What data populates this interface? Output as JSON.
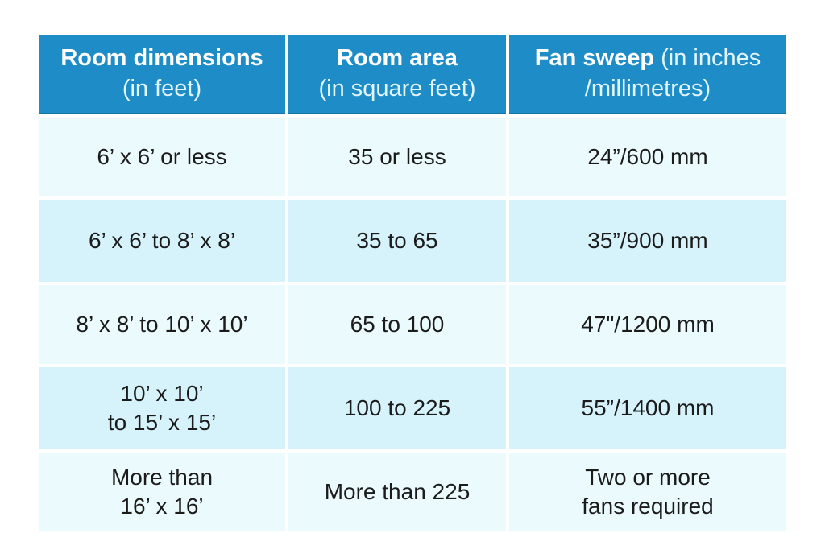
{
  "colors": {
    "header_bg": "#1e8cc7",
    "header_fg": "#ffffff",
    "header_fg_soft": "#e2f5fd",
    "row_light": "#eafafd",
    "row_dark": "#d6f2fa",
    "text": "#1b1b1b",
    "page_bg": "#ffffff"
  },
  "table": {
    "headers": [
      {
        "bold": "Room dimensions",
        "rest": "\n(in feet)"
      },
      {
        "bold": "Room area",
        "rest": "\n(in square feet)"
      },
      {
        "bold": "Fan sweep",
        "rest": " (in inches\n/millimetres)"
      }
    ],
    "rows": [
      [
        "6’ x 6’ or less",
        "35 or less",
        "24”/600 mm"
      ],
      [
        "6’ x 6’ to 8’ x 8’",
        "35 to 65",
        "35”/900 mm"
      ],
      [
        "8’ x 8’ to 10’ x 10’",
        "65 to 100",
        "47\"/1200 mm"
      ],
      [
        "10’ x 10’\nto 15’ x 15’",
        "100 to 225",
        "55”/1400 mm"
      ],
      [
        "More than\n16’ x 16’",
        "More than 225",
        "Two or more\nfans required"
      ]
    ]
  }
}
